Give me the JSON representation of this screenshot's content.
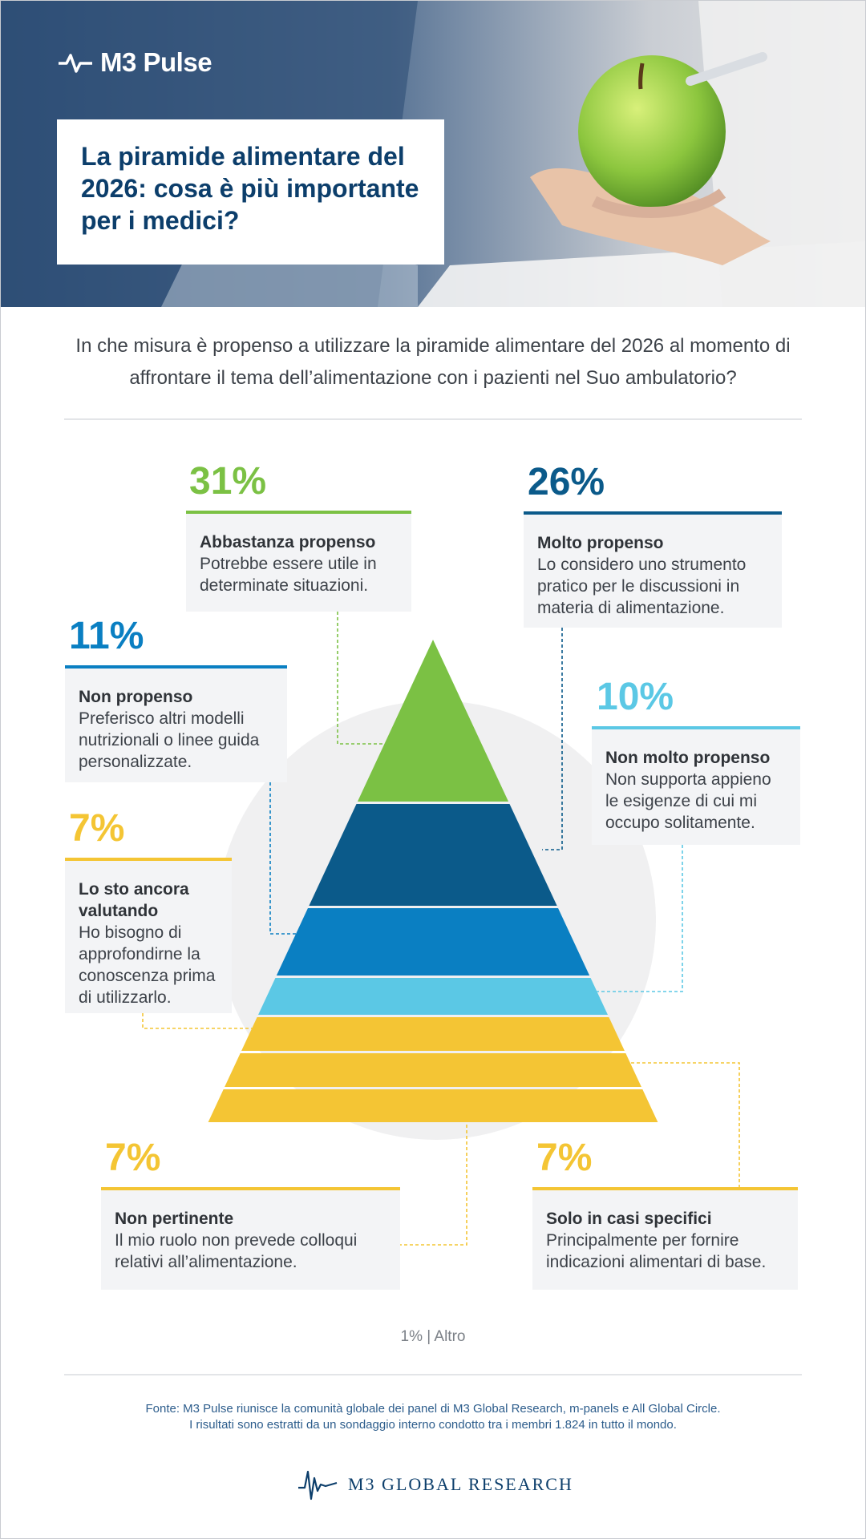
{
  "brand": {
    "name": "M3 Pulse"
  },
  "header": {
    "title": "La piramide alimentare del 2026: cosa è più importante per i medici?"
  },
  "question": "In che misura è propenso a utilizzare la piramide alimentare del 2026 al momento di affrontare il tema dell’alimentazione con i pazienti nel Suo ambulatorio?",
  "colors": {
    "green": "#7bc144",
    "navy": "#0b5a8a",
    "blue": "#0a7fc2",
    "light_blue": "#5bc8e5",
    "yellow": "#f4c534",
    "title_navy": "#0c3e6b"
  },
  "chart_data": {
    "type": "pyramid",
    "unit": "%",
    "slices": [
      {
        "label": "Abbastanza propenso",
        "value": 31,
        "value_label": "31%",
        "description": "Potrebbe essere utile in determinate situazioni.",
        "color": "#7bc144"
      },
      {
        "label": "Molto propenso",
        "value": 26,
        "value_label": "26%",
        "description": "Lo considero uno strumento pratico per le discussioni in materia di alimentazione.",
        "color": "#0b5a8a"
      },
      {
        "label": "Non propenso",
        "value": 11,
        "value_label": "11%",
        "description": "Preferisco altri modelli nutrizionali o linee guida personalizzate.",
        "color": "#0a7fc2"
      },
      {
        "label": "Non molto propenso",
        "value": 10,
        "value_label": "10%",
        "description": "Non supporta appieno le esigenze di cui mi occupo solitamente.",
        "color": "#5bc8e5"
      },
      {
        "label": "Lo sto ancora valutando",
        "value": 7,
        "value_label": "7%",
        "description": "Ho bisogno di approfondirne la conoscenza prima di utilizzarlo.",
        "color": "#f4c534"
      },
      {
        "label": "Solo in casi specifici",
        "value": 7,
        "value_label": "7%",
        "description": "Principalmente per fornire indicazioni alimentari di base.",
        "color": "#f4c534"
      },
      {
        "label": "Non pertinente",
        "value": 7,
        "value_label": "7%",
        "description": "Il mio ruolo non prevede colloqui relativi all’alimentazione.",
        "color": "#f4c534"
      }
    ],
    "other": "1% | Altro"
  },
  "footer": {
    "source_line1": "Fonte: M3 Pulse riunisce la comunità globale dei panel di M3 Global Research, m-panels e All Global Circle.",
    "source_line2": "I risultati sono estratti da un sondaggio interno condotto tra i membri 1.824 in tutto il mondo.",
    "logo_text": "M3  GLOBAL RESEARCH"
  }
}
